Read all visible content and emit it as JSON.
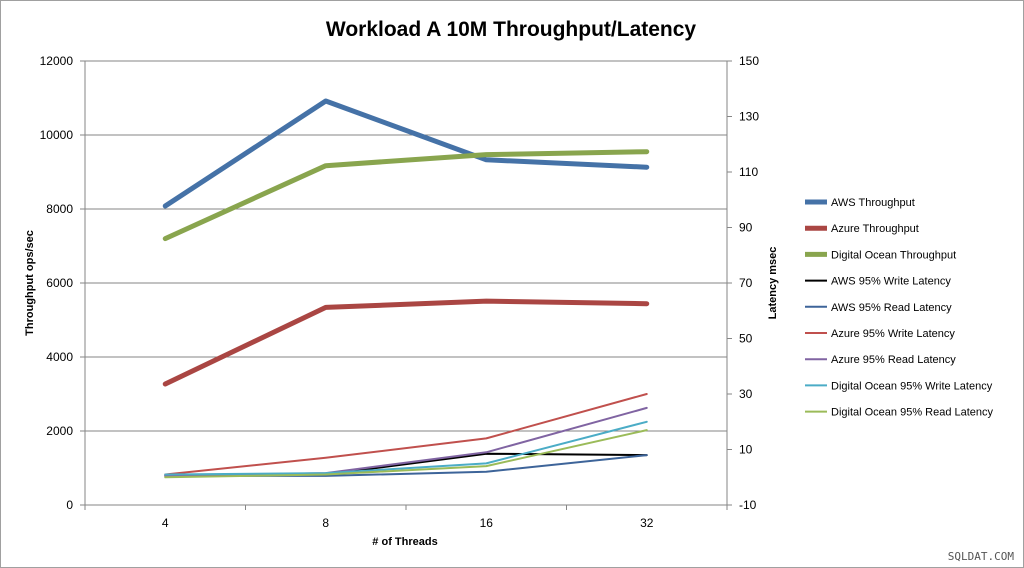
{
  "chart_data": {
    "type": "line",
    "title": "Workload A 10M Throughput/Latency",
    "xlabel": "# of Threads",
    "ylabel_left": "Throughput ops/sec",
    "ylabel_right": "Latency msec",
    "categories": [
      "4",
      "8",
      "16",
      "32"
    ],
    "y_left": {
      "lim": [
        0,
        12000
      ],
      "ticks": [
        "0",
        "2000",
        "4000",
        "6000",
        "8000",
        "10000",
        "12000"
      ]
    },
    "y_right": {
      "lim": [
        -10,
        150
      ],
      "ticks": [
        "-10",
        "10",
        "30",
        "50",
        "70",
        "90",
        "110",
        "130",
        "150"
      ]
    },
    "grid": "horizontal",
    "legend_position": "right",
    "series": [
      {
        "name": "AWS Throughput",
        "axis": "left",
        "values": [
          8080,
          10920,
          9330,
          9130
        ],
        "color": "#4572a7",
        "thick": true
      },
      {
        "name": "Azure Throughput",
        "axis": "left",
        "values": [
          3270,
          5340,
          5510,
          5440
        ],
        "color": "#aa4643",
        "thick": true
      },
      {
        "name": "Digital Ocean Throughput",
        "axis": "left",
        "values": [
          7200,
          9170,
          9470,
          9550
        ],
        "color": "#89a54e",
        "thick": true
      },
      {
        "name": "AWS 95% Write Latency",
        "axis": "right",
        "values": [
          0.5,
          1.0,
          8.5,
          8.0
        ],
        "color": "#000000",
        "thick": false
      },
      {
        "name": "AWS 95% Read Latency",
        "axis": "right",
        "values": [
          0.5,
          0.5,
          2.0,
          8.0
        ],
        "color": "#3d6499",
        "thick": false
      },
      {
        "name": "Azure 95% Write Latency",
        "axis": "right",
        "values": [
          1.0,
          7.0,
          14.0,
          30.0
        ],
        "color": "#c0504d",
        "thick": false
      },
      {
        "name": "Azure 95% Read Latency",
        "axis": "right",
        "values": [
          0.5,
          1.5,
          9.0,
          25.0
        ],
        "color": "#8064a2",
        "thick": false
      },
      {
        "name": "Digital Ocean 95% Write Latency",
        "axis": "right",
        "values": [
          1.0,
          1.5,
          5.0,
          20.0
        ],
        "color": "#4bacc6",
        "thick": false
      },
      {
        "name": "Digital Ocean 95% Read Latency",
        "axis": "right",
        "values": [
          0.0,
          1.0,
          4.0,
          17.0
        ],
        "color": "#9bbb59",
        "thick": false
      }
    ]
  },
  "watermark": "SQLDAT.COM"
}
